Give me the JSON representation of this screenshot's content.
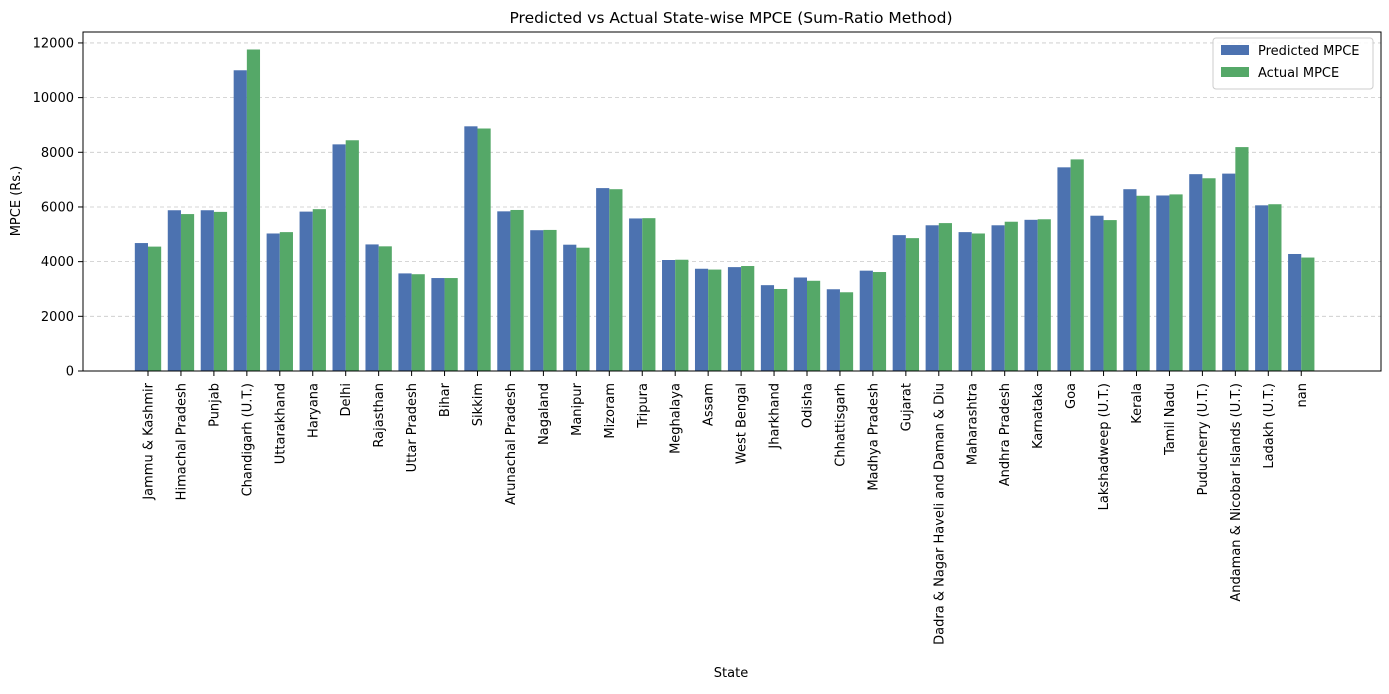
{
  "chart_data": {
    "type": "bar",
    "title": "Predicted vs Actual State-wise MPCE (Sum-Ratio Method)",
    "xlabel": "State",
    "ylabel": "MPCE (Rs.)",
    "ylim": [
      0,
      12400
    ],
    "yticks": [
      0,
      2000,
      4000,
      6000,
      8000,
      10000,
      12000
    ],
    "grid": "y-dashed",
    "legend_position": "top-right",
    "categories": [
      "Jammu & Kashmir",
      "Himachal Pradesh",
      "Punjab",
      "Chandigarh (U.T.)",
      "Uttarakhand",
      "Haryana",
      "Delhi",
      "Rajasthan",
      "Uttar Pradesh",
      "Bihar",
      "Sikkim",
      "Arunachal Pradesh",
      "Nagaland",
      "Manipur",
      "Mizoram",
      "Tripura",
      "Meghalaya",
      "Assam",
      "West Bengal",
      "Jharkhand",
      "Odisha",
      "Chhattisgarh",
      "Madhya Pradesh",
      "Gujarat",
      "Dadra & Nagar Haveli and Daman & Diu",
      "Maharashtra",
      "Andhra Pradesh",
      "Karnataka",
      "Goa",
      "Lakshadweep (U.T.)",
      "Kerala",
      "Tamil Nadu",
      "Puducherry (U.T.)",
      "Andaman & Nicobar Islands (U.T.)",
      "Ladakh (U.T.)",
      "nan"
    ],
    "series": [
      {
        "name": "Predicted MPCE",
        "color": "#4c72b0",
        "values": [
          4680,
          5880,
          5880,
          11000,
          5030,
          5830,
          8290,
          4630,
          3570,
          3400,
          8950,
          5840,
          5150,
          4620,
          6690,
          5580,
          4060,
          3740,
          3800,
          3140,
          3420,
          2990,
          3670,
          4970,
          5330,
          5080,
          5330,
          5530,
          7450,
          5680,
          6650,
          6420,
          7200,
          7220,
          6060,
          4280
        ]
      },
      {
        "name": "Actual MPCE",
        "color": "#55a868",
        "values": [
          4550,
          5740,
          5820,
          11760,
          5080,
          5920,
          8440,
          4560,
          3540,
          3400,
          8870,
          5890,
          5160,
          4510,
          6650,
          5590,
          4070,
          3710,
          3840,
          3000,
          3300,
          2880,
          3620,
          4860,
          5410,
          5030,
          5460,
          5550,
          7740,
          5520,
          6410,
          6460,
          7050,
          8190,
          6100,
          4150
        ]
      }
    ]
  }
}
